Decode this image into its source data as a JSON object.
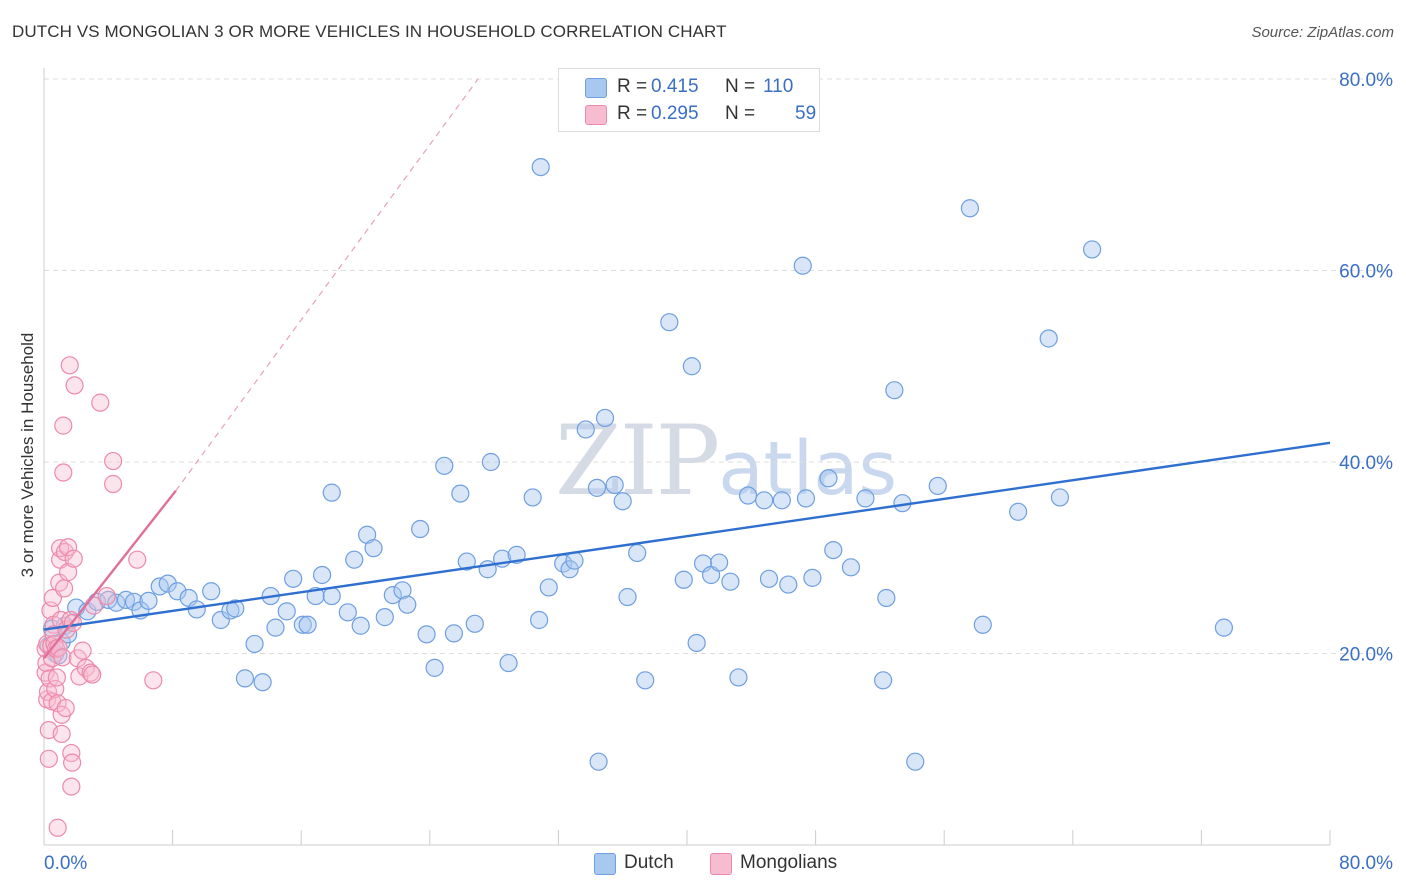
{
  "title": "DUTCH VS MONGOLIAN 3 OR MORE VEHICLES IN HOUSEHOLD CORRELATION CHART",
  "source": "Source: ZipAtlas.com",
  "watermark": {
    "zip": "ZIP",
    "atlas": "atlas"
  },
  "legend": {
    "rows": [
      {
        "r_label": "R =",
        "r_value": "0.415",
        "n_label": "N =",
        "n_value": "110",
        "color": "#a9c8f0",
        "stroke": "#6f9fe0"
      },
      {
        "r_label": "R =",
        "r_value": "0.295",
        "n_label": "N =",
        "n_value": "59",
        "color": "#f8bcd0",
        "stroke": "#ec8aab"
      }
    ]
  },
  "bottom_legend": [
    {
      "label": "Dutch",
      "color": "#a9c8f0",
      "stroke": "#6f9fe0"
    },
    {
      "label": "Mongolians",
      "color": "#f8bcd0",
      "stroke": "#ec8aab"
    }
  ],
  "chart_data": {
    "type": "scatter",
    "title": "DUTCH VS MONGOLIAN 3 OR MORE VEHICLES IN HOUSEHOLD CORRELATION CHART",
    "xlabel": "",
    "ylabel": "3 or more Vehicles in Household",
    "xlim": [
      0,
      80
    ],
    "ylim": [
      0,
      80
    ],
    "x_tick_labels": [
      "0.0%",
      "80.0%"
    ],
    "y_tick_labels": [
      "20.0%",
      "40.0%",
      "60.0%",
      "80.0%"
    ],
    "y_ticks": [
      20,
      40,
      60,
      80
    ],
    "grid": true,
    "legend_position": "top-center",
    "series": [
      {
        "name": "Dutch",
        "color": "#6f9fe0",
        "fill": "rgba(169,200,240,0.45)",
        "trend": {
          "x0": 0,
          "y0": 22.5,
          "x1": 80,
          "y1": 42.0,
          "color": "#2f6fcf"
        },
        "points": [
          [
            0.3,
            20.8
          ],
          [
            0.5,
            22.6
          ],
          [
            0.7,
            20.0
          ],
          [
            0.9,
            19.8
          ],
          [
            1.1,
            21.2
          ],
          [
            1.3,
            22.9
          ],
          [
            1.5,
            22.0
          ],
          [
            2.0,
            24.8
          ],
          [
            2.7,
            24.4
          ],
          [
            3.3,
            25.4
          ],
          [
            4.0,
            25.6
          ],
          [
            4.5,
            25.3
          ],
          [
            5.1,
            25.6
          ],
          [
            5.6,
            25.4
          ],
          [
            6.0,
            24.5
          ],
          [
            6.5,
            25.5
          ],
          [
            7.2,
            27.0
          ],
          [
            7.7,
            27.3
          ],
          [
            8.3,
            26.5
          ],
          [
            9.0,
            25.8
          ],
          [
            9.5,
            24.6
          ],
          [
            10.4,
            26.5
          ],
          [
            11.0,
            23.5
          ],
          [
            11.6,
            24.5
          ],
          [
            11.9,
            24.7
          ],
          [
            12.5,
            17.4
          ],
          [
            13.1,
            21.0
          ],
          [
            13.6,
            17.0
          ],
          [
            14.1,
            26.0
          ],
          [
            14.4,
            22.7
          ],
          [
            15.1,
            24.4
          ],
          [
            15.5,
            27.8
          ],
          [
            16.1,
            23.0
          ],
          [
            16.4,
            23.0
          ],
          [
            16.9,
            26.0
          ],
          [
            17.3,
            28.2
          ],
          [
            17.9,
            26.0
          ],
          [
            17.9,
            36.8
          ],
          [
            18.9,
            24.3
          ],
          [
            19.3,
            29.8
          ],
          [
            19.7,
            22.9
          ],
          [
            20.1,
            32.4
          ],
          [
            20.5,
            31.0
          ],
          [
            21.2,
            23.8
          ],
          [
            21.7,
            26.1
          ],
          [
            22.3,
            26.6
          ],
          [
            22.6,
            25.1
          ],
          [
            23.4,
            33.0
          ],
          [
            23.8,
            22.0
          ],
          [
            24.3,
            18.5
          ],
          [
            24.9,
            39.6
          ],
          [
            25.5,
            22.1
          ],
          [
            25.9,
            36.7
          ],
          [
            26.3,
            29.6
          ],
          [
            26.8,
            23.1
          ],
          [
            27.6,
            28.8
          ],
          [
            27.8,
            40.0
          ],
          [
            28.5,
            29.9
          ],
          [
            28.9,
            19.0
          ],
          [
            29.4,
            30.3
          ],
          [
            30.4,
            36.3
          ],
          [
            30.8,
            23.5
          ],
          [
            31.4,
            26.9
          ],
          [
            30.9,
            70.8
          ],
          [
            32.3,
            29.4
          ],
          [
            32.7,
            28.8
          ],
          [
            33.0,
            29.7
          ],
          [
            33.7,
            43.4
          ],
          [
            34.4,
            37.3
          ],
          [
            34.5,
            8.7
          ],
          [
            34.9,
            44.6
          ],
          [
            35.5,
            37.6
          ],
          [
            36.0,
            35.9
          ],
          [
            36.3,
            25.9
          ],
          [
            36.9,
            30.5
          ],
          [
            37.4,
            17.2
          ],
          [
            38.9,
            54.6
          ],
          [
            39.8,
            27.7
          ],
          [
            40.3,
            50.0
          ],
          [
            40.6,
            21.1
          ],
          [
            41.0,
            29.4
          ],
          [
            41.5,
            28.2
          ],
          [
            42.0,
            29.5
          ],
          [
            42.7,
            27.5
          ],
          [
            43.2,
            17.5
          ],
          [
            43.8,
            36.5
          ],
          [
            44.8,
            36.0
          ],
          [
            45.1,
            27.8
          ],
          [
            45.9,
            36.0
          ],
          [
            46.3,
            27.2
          ],
          [
            47.2,
            60.5
          ],
          [
            47.4,
            36.2
          ],
          [
            47.8,
            27.9
          ],
          [
            48.8,
            38.3
          ],
          [
            49.1,
            30.8
          ],
          [
            50.2,
            29.0
          ],
          [
            51.1,
            36.2
          ],
          [
            52.2,
            17.2
          ],
          [
            52.4,
            25.8
          ],
          [
            52.9,
            47.5
          ],
          [
            53.4,
            35.7
          ],
          [
            54.2,
            8.7
          ],
          [
            55.6,
            37.5
          ],
          [
            57.6,
            66.5
          ],
          [
            58.4,
            23.0
          ],
          [
            60.6,
            34.8
          ],
          [
            62.5,
            52.9
          ],
          [
            63.2,
            36.3
          ],
          [
            65.2,
            62.2
          ],
          [
            73.4,
            22.7
          ]
        ]
      },
      {
        "name": "Mongolians",
        "color": "#ec8aab",
        "fill": "rgba(248,188,208,0.40)",
        "trend": {
          "x0": 0,
          "y0": 19.5,
          "x1": 8.2,
          "y1": 37.0,
          "color": "#e0709a"
        },
        "dashed_extension": {
          "x0": 8.2,
          "y0": 37.0,
          "x1": 27.0,
          "y1": 80.0,
          "color": "#e8a0b8"
        },
        "points": [
          [
            0.1,
            20.5
          ],
          [
            0.1,
            18.0
          ],
          [
            0.15,
            19.0
          ],
          [
            0.2,
            21.0
          ],
          [
            0.2,
            15.2
          ],
          [
            0.25,
            16.0
          ],
          [
            0.3,
            12.0
          ],
          [
            0.3,
            9.0
          ],
          [
            0.35,
            17.4
          ],
          [
            0.4,
            24.5
          ],
          [
            0.45,
            20.8
          ],
          [
            0.5,
            19.5
          ],
          [
            0.5,
            15.0
          ],
          [
            0.55,
            25.8
          ],
          [
            0.6,
            23.0
          ],
          [
            0.6,
            22.0
          ],
          [
            0.65,
            21.0
          ],
          [
            0.7,
            16.3
          ],
          [
            0.75,
            20.5
          ],
          [
            0.8,
            17.5
          ],
          [
            0.85,
            1.8
          ],
          [
            0.85,
            14.8
          ],
          [
            0.9,
            20.6
          ],
          [
            0.95,
            27.4
          ],
          [
            1.0,
            29.8
          ],
          [
            1.0,
            31.0
          ],
          [
            1.05,
            23.5
          ],
          [
            1.1,
            13.6
          ],
          [
            1.1,
            11.6
          ],
          [
            1.15,
            19.6
          ],
          [
            1.2,
            38.9
          ],
          [
            1.2,
            43.8
          ],
          [
            1.25,
            26.8
          ],
          [
            1.3,
            30.6
          ],
          [
            1.35,
            14.3
          ],
          [
            1.4,
            22.5
          ],
          [
            1.5,
            31.1
          ],
          [
            1.5,
            28.5
          ],
          [
            1.6,
            50.1
          ],
          [
            1.65,
            23.5
          ],
          [
            1.7,
            6.1
          ],
          [
            1.7,
            9.6
          ],
          [
            1.75,
            8.6
          ],
          [
            1.8,
            23.2
          ],
          [
            1.85,
            29.9
          ],
          [
            1.9,
            48.0
          ],
          [
            2.1,
            19.5
          ],
          [
            2.2,
            17.6
          ],
          [
            2.4,
            20.3
          ],
          [
            2.6,
            18.5
          ],
          [
            2.9,
            18.0
          ],
          [
            3.0,
            17.8
          ],
          [
            3.1,
            25.0
          ],
          [
            3.5,
            46.2
          ],
          [
            3.9,
            26.0
          ],
          [
            4.3,
            40.1
          ],
          [
            4.3,
            37.7
          ],
          [
            5.8,
            29.8
          ],
          [
            6.8,
            17.2
          ]
        ]
      }
    ]
  }
}
